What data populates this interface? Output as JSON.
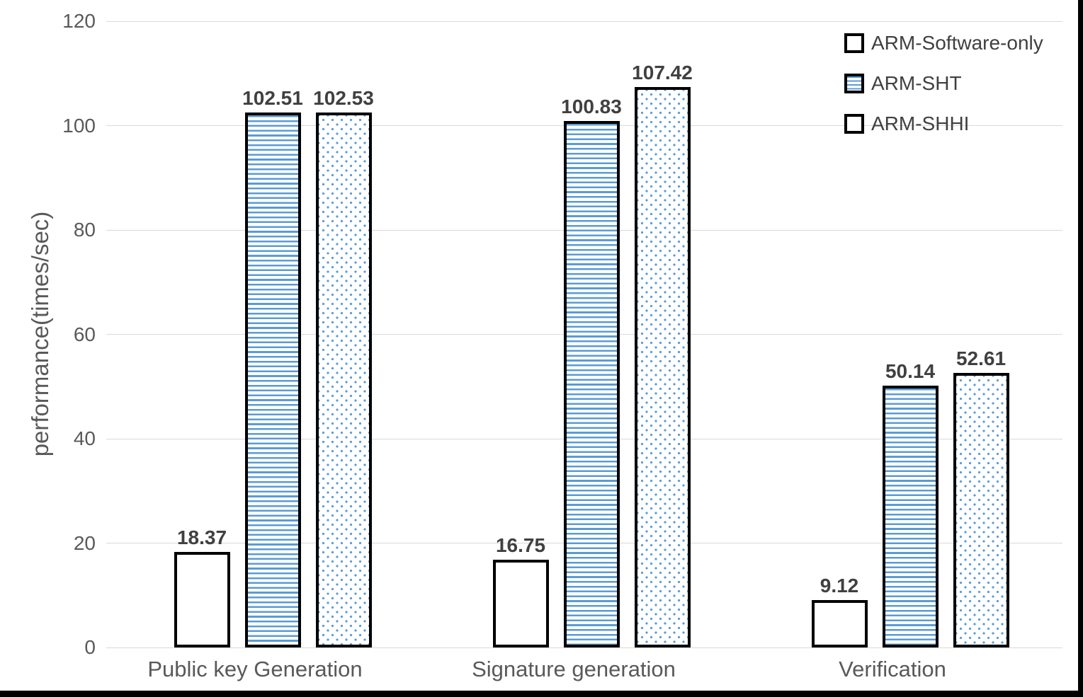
{
  "chart_data": {
    "type": "bar",
    "title": "",
    "categories": [
      "Public key Generation",
      "Signature generation",
      "Verification"
    ],
    "series": [
      {
        "name": "ARM-Software-only",
        "pattern": "solid-white",
        "values": [
          18.37,
          16.75,
          9.12
        ]
      },
      {
        "name": "ARM-SHT",
        "pattern": "horizontal-stripes",
        "values": [
          102.51,
          100.83,
          50.14
        ]
      },
      {
        "name": "ARM-SHHI",
        "pattern": "dots",
        "values": [
          102.53,
          107.42,
          52.61
        ]
      }
    ],
    "data_labels": [
      "18.37",
      "102.51",
      "102.53",
      "16.75",
      "100.83",
      "107.42",
      "9.12",
      "50.14",
      "52.61"
    ],
    "xlabel": "",
    "ylabel": "performance(times/sec)",
    "ylim": [
      0,
      120
    ],
    "yticks": [
      0,
      20,
      40,
      60,
      80,
      100,
      120
    ],
    "grid": true,
    "legend_position": "top-right",
    "colors": {
      "pattern_blue": "#5b9bd5",
      "bar_border": "#000000",
      "gridline": "#d9d9d9",
      "axis_text": "#595959",
      "data_label_text": "#404040",
      "frame": "#000000",
      "background": "#ffffff"
    }
  }
}
